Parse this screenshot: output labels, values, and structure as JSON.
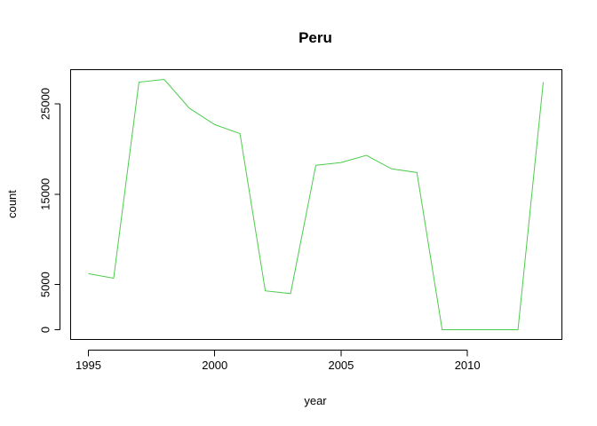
{
  "chart_data": {
    "type": "line",
    "title": "Peru",
    "xlabel": "year",
    "ylabel": "count",
    "x": [
      1995,
      1996,
      1997,
      1998,
      1999,
      2000,
      2001,
      2002,
      2003,
      2004,
      2005,
      2006,
      2007,
      2008,
      2009,
      2010,
      2011,
      2012,
      2013
    ],
    "series": [
      {
        "values": [
          6200,
          5700,
          27400,
          27700,
          24500,
          22700,
          21700,
          4300,
          4000,
          18200,
          18500,
          19300,
          17800,
          17400,
          0,
          0,
          0,
          0,
          27400
        ],
        "color": "#4ccc4c"
      }
    ],
    "xlim": [
      1995,
      2013
    ],
    "ylim": [
      0,
      27700
    ],
    "x_ticks": [
      1995,
      2000,
      2005,
      2010
    ],
    "x_tick_labels": [
      "1995",
      "2000",
      "2005",
      "2010"
    ],
    "y_ticks": [
      0,
      5000,
      15000,
      25000
    ],
    "y_tick_labels": [
      "0",
      "5000",
      "15000",
      "25000"
    ],
    "grid": false,
    "legend": "none"
  }
}
